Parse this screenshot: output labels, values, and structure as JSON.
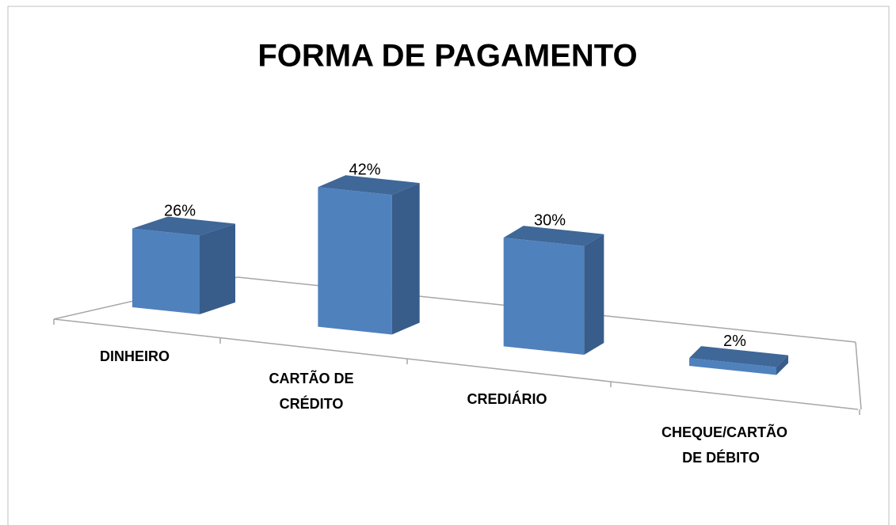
{
  "chart_data": {
    "type": "bar3d",
    "title": "FORMA DE PAGAMENTO",
    "categories": [
      "DINHEIRO",
      "CARTÃO DE CRÉDITO",
      "CREDIÁRIO",
      "CHEQUE/CARTÃO DE DÉBITO"
    ],
    "values": [
      26,
      42,
      30,
      2
    ],
    "value_labels": [
      "26%",
      "42%",
      "30%",
      "2%"
    ],
    "color": "#4f81bd"
  }
}
